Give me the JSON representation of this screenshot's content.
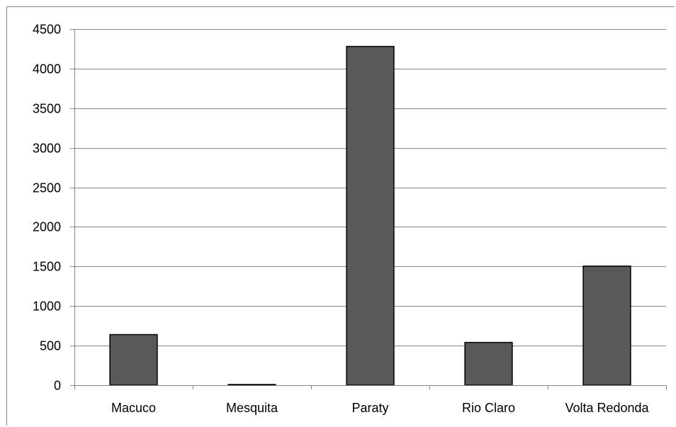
{
  "chart_data": {
    "type": "bar",
    "title": "",
    "xlabel": "",
    "ylabel": "",
    "categories": [
      "Macuco",
      "Mesquita",
      "Paraty",
      "Rio Claro",
      "Volta Redonda"
    ],
    "values": [
      640,
      5,
      4280,
      540,
      1505
    ],
    "ylim": [
      0,
      4500
    ],
    "yticks": [
      0,
      500,
      1000,
      1500,
      2000,
      2500,
      3000,
      3500,
      4000,
      4500
    ],
    "ytick_labels": [
      "0",
      "500",
      "1000",
      "1500",
      "2000",
      "2500",
      "3000",
      "3500",
      "4000",
      "4500"
    ],
    "grid": true,
    "legend": "none",
    "bar_color": "#595959",
    "bar_edge_color": "#000000",
    "grid_color": "#868686"
  }
}
